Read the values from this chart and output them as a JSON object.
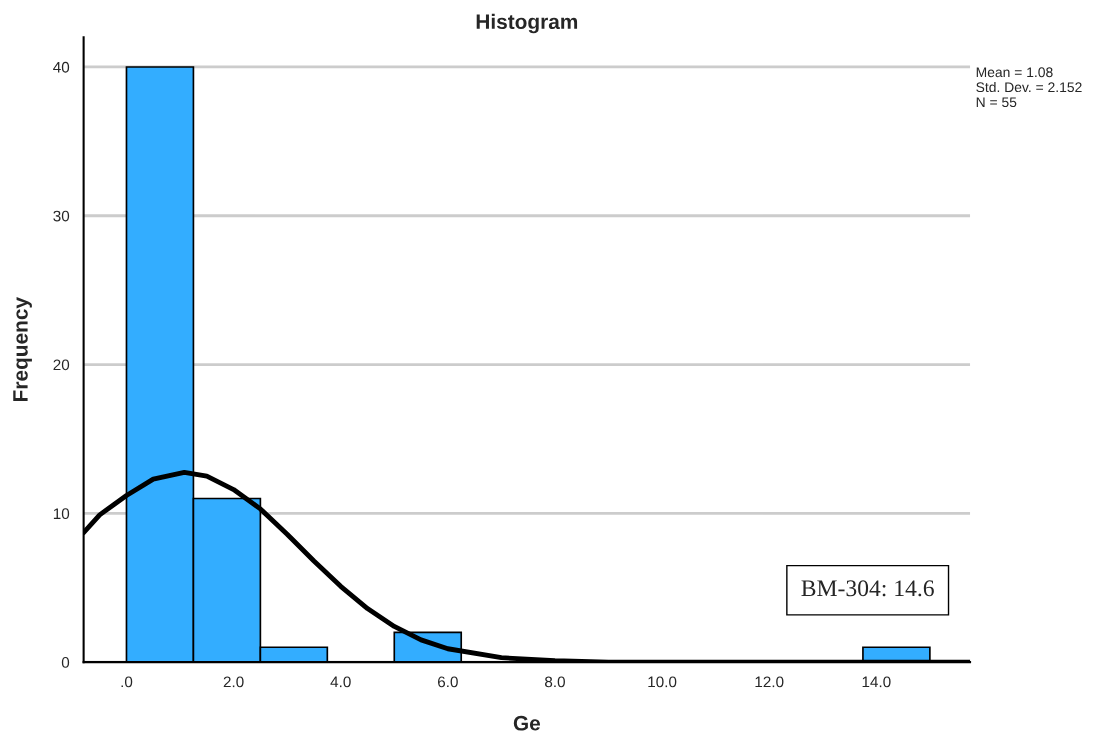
{
  "chart_data": {
    "type": "histogram",
    "title": "Histogram",
    "xlabel": "Ge",
    "ylabel": "Frequency",
    "bins": [
      0,
      1.25,
      2.5,
      3.75,
      5,
      6.25,
      7.5,
      8.75,
      10,
      11.25,
      12.5,
      13.75,
      15
    ],
    "values": [
      40,
      11,
      1,
      0,
      2,
      0,
      0,
      0,
      0,
      0,
      0,
      1
    ],
    "color": "#33adff",
    "series": [
      {
        "type": "line",
        "color": "#000000",
        "x": [
          -0.8,
          -0.5,
          0,
          0.5,
          1.08,
          1.5,
          2,
          2.5,
          3,
          3.5,
          4,
          4.5,
          5,
          5.5,
          6,
          7,
          8,
          9,
          12,
          15.75
        ],
        "values": [
          8.7,
          9.9,
          11.2,
          12.3,
          12.75,
          12.5,
          11.6,
          10.3,
          8.6,
          6.8,
          5.1,
          3.6,
          2.4,
          1.5,
          0.9,
          0.3,
          0.1,
          0,
          0,
          0
        ]
      }
    ],
    "xlim": [
      -0.8,
      15.75
    ],
    "ylim": [
      0,
      42
    ],
    "xticks": [
      {
        "value": 0,
        "label": ".0"
      },
      {
        "value": 2,
        "label": "2.0"
      },
      {
        "value": 4,
        "label": "4.0"
      },
      {
        "value": 6,
        "label": "6.0"
      },
      {
        "value": 8,
        "label": "8.0"
      },
      {
        "value": 10,
        "label": "10.0"
      },
      {
        "value": 12,
        "label": "12.0"
      },
      {
        "value": 14,
        "label": "14.0"
      }
    ],
    "yticks": [
      0,
      10,
      20,
      30,
      40
    ],
    "grid": "y",
    "annotations": [
      "Mean = 1.08\nStd. Dev. = 2.152\nN = 55",
      "BM-304: 14.6"
    ]
  }
}
